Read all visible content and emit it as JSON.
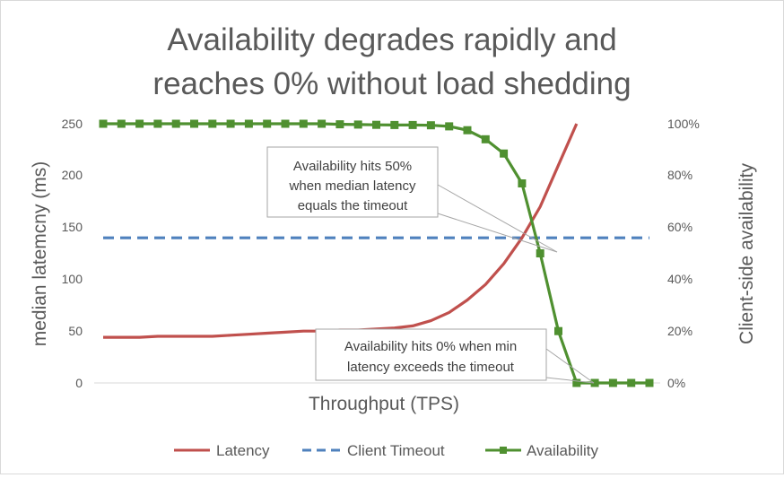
{
  "chart_data": {
    "type": "line",
    "title_lines": [
      "Availability degrades rapidly and",
      "reaches 0% without load shedding"
    ],
    "xlabel": "Throughput (TPS)",
    "ylabel_left": "median latemcny (ms)",
    "ylabel_right": "Client-side availability",
    "ylim_left": [
      0,
      250
    ],
    "ylim_right": [
      0,
      100
    ],
    "yticks_left": [
      "0",
      "50",
      "100",
      "150",
      "200",
      "250"
    ],
    "yticks_right": [
      "0%",
      "20%",
      "40%",
      "60%",
      "80%",
      "100%"
    ],
    "x_points": 31,
    "series": [
      {
        "name": "Latency",
        "axis": "left",
        "color": "#c0504d",
        "dash": "none",
        "values": [
          44,
          44,
          44,
          45,
          45,
          45,
          45,
          46,
          47,
          48,
          49,
          50,
          50,
          51,
          51,
          52,
          53,
          55,
          60,
          68,
          80,
          95,
          115,
          140,
          170,
          210,
          250
        ]
      },
      {
        "name": "Client Timeout",
        "axis": "left",
        "color": "#4f81bd",
        "dash": "dashed",
        "values": [
          140,
          140,
          140,
          140,
          140,
          140,
          140,
          140,
          140,
          140,
          140,
          140,
          140,
          140,
          140,
          140,
          140,
          140,
          140,
          140,
          140,
          140,
          140,
          140,
          140,
          140,
          140,
          140,
          140,
          140,
          140
        ]
      },
      {
        "name": "Availability",
        "axis": "right",
        "color": "#4f9030",
        "dash": "none",
        "marker": "square",
        "values": [
          100,
          100,
          100,
          100,
          100,
          100,
          100,
          100,
          100,
          100,
          100,
          100,
          100,
          99.8,
          99.7,
          99.6,
          99.5,
          99.5,
          99.4,
          99,
          97.5,
          94,
          88.5,
          77,
          50,
          20,
          0,
          0,
          0,
          0,
          0
        ]
      }
    ],
    "annotations": [
      {
        "lines": [
          "Availability hits 50%",
          "when median latency",
          "equals the timeout"
        ]
      },
      {
        "lines": [
          "Availability hits 0% when min",
          "latency exceeds the timeout"
        ]
      }
    ]
  }
}
